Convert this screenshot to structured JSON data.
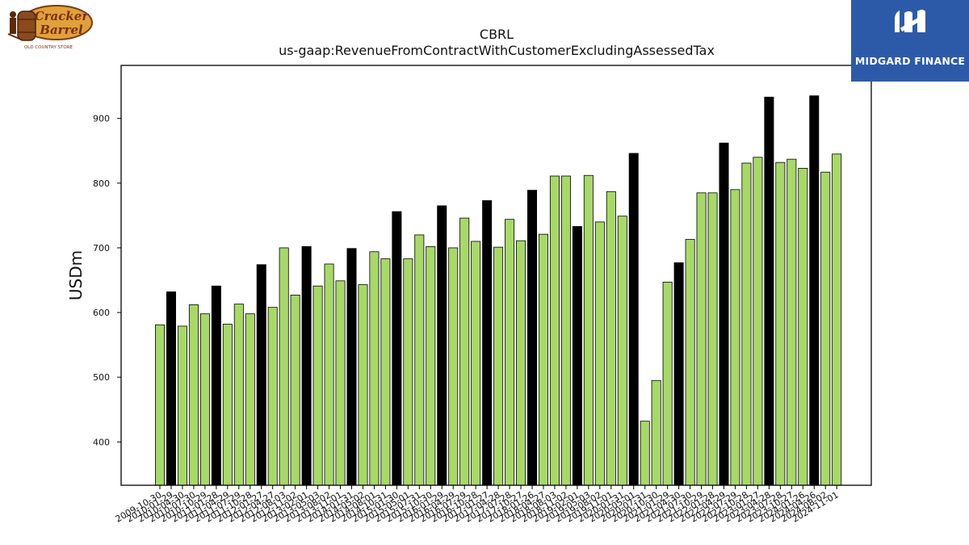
{
  "chart_data": {
    "type": "bar",
    "title": "CBRL",
    "subtitle": "us-gaap:RevenueFromContractWithCustomerExcludingAssessedTax",
    "ylabel": "USDm",
    "xlabel": "",
    "ylim": [
      333,
      982
    ],
    "yticks": [
      400,
      500,
      600,
      700,
      800,
      900
    ],
    "grid": false,
    "legend": "none",
    "colors": {
      "quarter": "#a8d86a",
      "fiscal_q4": "#000000",
      "edge": "#000000"
    },
    "categories": [
      "2009-10-30",
      "2010-01-29",
      "2010-04-30",
      "2010-07-30",
      "2010-10-29",
      "2011-01-28",
      "2011-04-29",
      "2011-07-29",
      "2011-10-28",
      "2012-01-27",
      "2012-04-27",
      "2012-08-03",
      "2012-11-02",
      "2013-02-01",
      "2013-05-03",
      "2013-08-02",
      "2013-11-01",
      "2014-01-31",
      "2014-05-02",
      "2014-08-01",
      "2014-10-31",
      "2015-01-30",
      "2015-05-01",
      "2015-07-31",
      "2015-10-30",
      "2016-01-29",
      "2016-04-29",
      "2016-07-29",
      "2016-10-28",
      "2017-01-27",
      "2017-04-28",
      "2017-07-28",
      "2017-10-27",
      "2018-01-26",
      "2018-04-27",
      "2018-08-03",
      "2018-11-02",
      "2019-02-01",
      "2019-05-03",
      "2019-08-02",
      "2019-11-01",
      "2020-01-31",
      "2020-05-01",
      "2020-07-31",
      "2020-10-30",
      "2021-01-29",
      "2021-04-30",
      "2021-07-30",
      "2021-10-29",
      "2022-01-28",
      "2022-04-29",
      "2022-07-29",
      "2022-10-28",
      "2023-01-27",
      "2023-04-28",
      "2023-07-28",
      "2023-10-27",
      "2024-01-26",
      "2024-04-26",
      "2024-08-02",
      "2024-11-01"
    ],
    "values": [
      581,
      632,
      579,
      612,
      598,
      641,
      582,
      613,
      598,
      674,
      608,
      700,
      627,
      702,
      641,
      675,
      649,
      699,
      643,
      694,
      683,
      756,
      683,
      720,
      702,
      765,
      700,
      746,
      710,
      773,
      701,
      744,
      711,
      789,
      721,
      811,
      811,
      733,
      812,
      740,
      787,
      749,
      846,
      432,
      495,
      647,
      677,
      713,
      785,
      785,
      862,
      790,
      831,
      840,
      933,
      832,
      837,
      823,
      935,
      817,
      845
    ],
    "fiscal_q4_flags": [
      0,
      1,
      0,
      0,
      0,
      1,
      0,
      0,
      0,
      1,
      0,
      0,
      0,
      1,
      0,
      0,
      0,
      1,
      0,
      0,
      0,
      1,
      0,
      0,
      0,
      1,
      0,
      0,
      0,
      1,
      0,
      0,
      0,
      1,
      0,
      0,
      0,
      1,
      0,
      0,
      0,
      0,
      1,
      0,
      0,
      0,
      1,
      0,
      0,
      0,
      1,
      0,
      0,
      0,
      1,
      0,
      0,
      0,
      1,
      0,
      0
    ],
    "tick_labels": [
      "2009-10-30",
      "2010-01-29",
      "2010-04-30",
      "2010-07-30",
      "2010-10-29",
      "2011-01-28",
      "2011-04-29",
      "2011-07-29",
      "2011-10-28",
      "2012-01-27",
      "2012-04-27",
      "2012-08-03",
      "2012-11-02",
      "2013-02-01",
      "2013-05-03",
      "2013-08-02",
      "2013-11-01",
      "2014-01-31",
      "2014-05-02",
      "2014-08-01",
      "2014-10-31",
      "2015-01-30",
      "2015-05-01",
      "2015-07-31",
      "2015-10-30",
      "2016-01-29",
      "2016-04-29",
      "2016-07-29",
      "2016-10-28",
      "2017-01-27",
      "2017-04-28",
      "2017-07-28",
      "2017-10-27",
      "2018-01-26",
      "2018-04-27",
      "2018-08-03",
      "2018-11-02",
      "2019-02-01",
      "2019-05-03",
      "2019-08-02",
      "2019-11-01",
      "2020-01-31",
      "2020-05-01",
      "2020-07-31",
      "2020-10-30",
      "2021-01-29",
      "2021-04-30",
      "2021-07-30",
      "2021-10-29",
      "2022-01-28",
      "2022-04-29",
      "2022-07-29",
      "2022-10-28",
      "2023-01-27",
      "2023-04-28",
      "2023-07-28",
      "2023-10-27",
      "2024-01-26",
      "2024-04-26",
      "2024-08-02",
      "2024-11-01"
    ]
  },
  "branding": {
    "left_logo_line1": "Cracker",
    "left_logo_line2": "Barrel",
    "left_logo_tagline": "OLD COUNTRY STORE",
    "right_logo_name": "MIDGARD FINANCE"
  }
}
